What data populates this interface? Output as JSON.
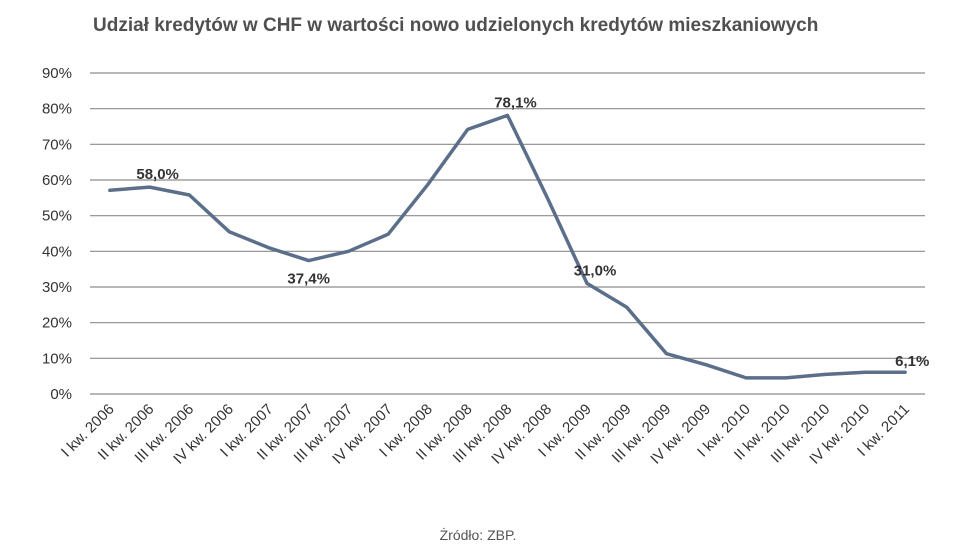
{
  "chart_data": {
    "type": "line",
    "title": "Udział kredytów w CHF w wartości nowo udzielonych kredytów mieszkaniowych",
    "xlabel": "",
    "ylabel": "",
    "ylim": [
      0,
      90
    ],
    "yticks": [
      "0%",
      "10%",
      "20%",
      "30%",
      "40%",
      "50%",
      "60%",
      "70%",
      "80%",
      "90%"
    ],
    "categories": [
      "I kw. 2006",
      "II kw. 2006",
      "III kw. 2006",
      "IV kw. 2006",
      "I kw. 2007",
      "II kw. 2007",
      "III kw. 2007",
      "IV kw. 2007",
      "I kw. 2008",
      "II kw. 2008",
      "III kw. 2008",
      "IV kw. 2008",
      "I kw. 2009",
      "II kw. 2009",
      "III kw. 2009",
      "IV kw. 2009",
      "I kw. 2010",
      "II kw. 2010",
      "III kw. 2010",
      "IV kw. 2010",
      "I kw. 2011"
    ],
    "series": [
      {
        "values": [
          57.1,
          58.0,
          55.8,
          45.5,
          41.0,
          37.4,
          40.0,
          44.8,
          58.8,
          74.2,
          78.1,
          55.0,
          31.0,
          24.3,
          11.3,
          8.2,
          4.5,
          4.5,
          5.5,
          6.1,
          6.1
        ],
        "color": "#5b6f8a"
      }
    ],
    "data_labels": [
      {
        "index": 1,
        "text": "58,0%"
      },
      {
        "index": 5,
        "text": "37,4%"
      },
      {
        "index": 10,
        "text": "78,1%"
      },
      {
        "index": 12,
        "text": "31,0%"
      },
      {
        "index": 20,
        "text": "6,1%"
      }
    ],
    "grid": true,
    "legend": "none",
    "gridline_color": "#8c8c8c"
  },
  "source": "Żródło: ZBP."
}
